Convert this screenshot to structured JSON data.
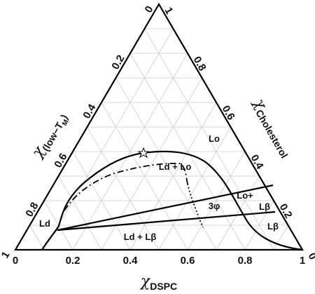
{
  "chart_data": {
    "type": "ternary",
    "axes": [
      {
        "symbol": "χ",
        "name": "DSPC",
        "ticks": [
          0,
          0.2,
          0.4,
          0.6,
          0.8,
          1
        ]
      },
      {
        "symbol": "χ",
        "name": "Cholesterol",
        "ticks": [
          0,
          0.2,
          0.4,
          0.6,
          0.8,
          1
        ]
      },
      {
        "symbol": "χ",
        "name": "(low−T",
        "sub": "M",
        "close": ")",
        "ticks": [
          0,
          0.2,
          0.4,
          0.6,
          0.8,
          1
        ]
      }
    ],
    "grid": true,
    "annotations": [
      "Lo",
      "Ld + Lo",
      "Lo+",
      "Lβ",
      "3φ",
      "Ld",
      "Ld + Lβ",
      "Lβ"
    ]
  }
}
